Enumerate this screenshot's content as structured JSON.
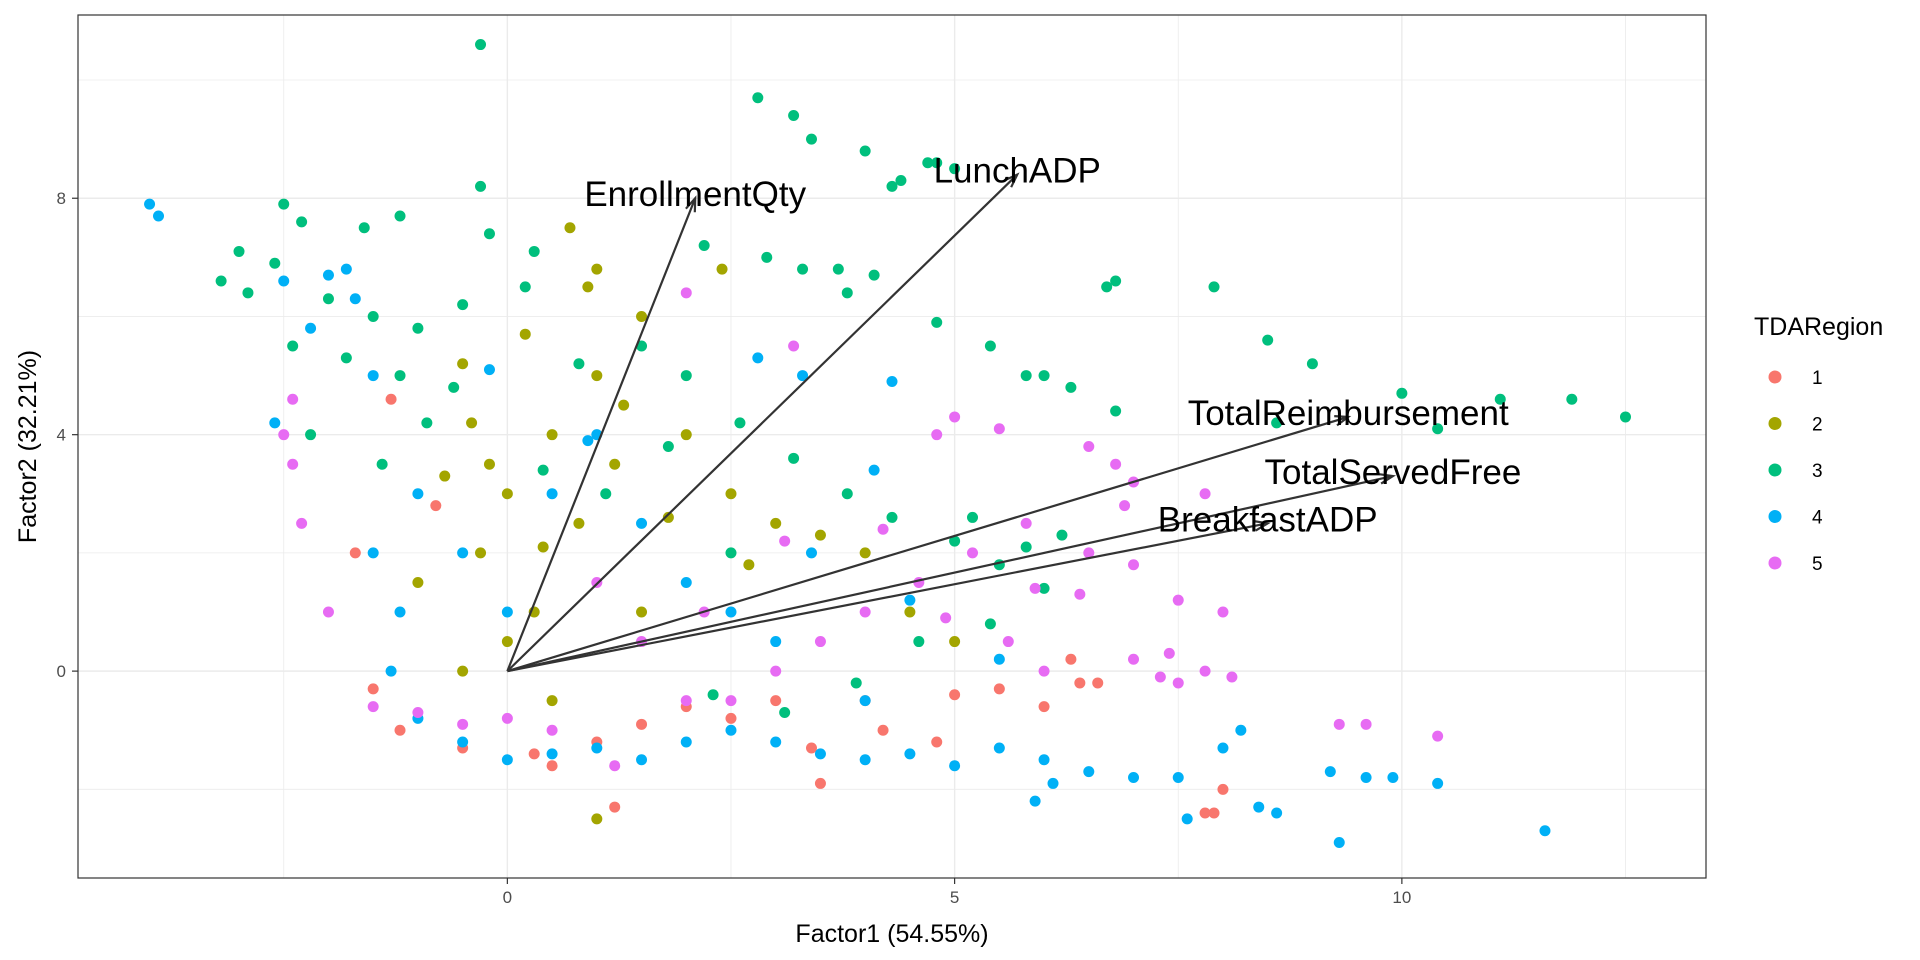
{
  "chart_data": {
    "type": "scatter",
    "title": "",
    "xlabel": "Factor1 (54.55%)",
    "ylabel": "Factor2 (32.21%)",
    "xlim": [
      -4.8,
      13.4
    ],
    "ylim": [
      -3.5,
      11.1
    ],
    "x_ticks": [
      0,
      5,
      10
    ],
    "y_ticks": [
      0,
      4,
      8
    ],
    "grid": true,
    "legend": {
      "title": "TDARegion",
      "placement": "right",
      "entries": [
        {
          "label": "1",
          "color": "#F8766D"
        },
        {
          "label": "2",
          "color": "#A3A500"
        },
        {
          "label": "3",
          "color": "#00BF7D"
        },
        {
          "label": "4",
          "color": "#00B0F6"
        },
        {
          "label": "5",
          "color": "#E76BF3"
        }
      ]
    },
    "series": [
      {
        "name": "1",
        "color": "#F8766D",
        "points": [
          [
            -1.5,
            -0.3
          ],
          [
            -1.2,
            -1.0
          ],
          [
            -0.5,
            -1.3
          ],
          [
            0.3,
            -1.4
          ],
          [
            1.0,
            -1.2
          ],
          [
            1.5,
            -0.9
          ],
          [
            2.0,
            -0.6
          ],
          [
            2.5,
            -0.8
          ],
          [
            3.0,
            -0.5
          ],
          [
            3.4,
            -1.3
          ],
          [
            3.5,
            -1.9
          ],
          [
            4.0,
            -0.5
          ],
          [
            4.2,
            -1.0
          ],
          [
            4.8,
            -1.2
          ],
          [
            5.0,
            -0.4
          ],
          [
            5.5,
            -0.3
          ],
          [
            6.0,
            -0.6
          ],
          [
            6.3,
            0.2
          ],
          [
            6.4,
            -0.2
          ],
          [
            6.6,
            -0.2
          ],
          [
            7.8,
            -2.4
          ],
          [
            7.9,
            -2.4
          ],
          [
            8.0,
            -2.0
          ],
          [
            1.2,
            -2.3
          ],
          [
            0.5,
            -1.6
          ],
          [
            -0.8,
            2.8
          ],
          [
            -1.7,
            2.0
          ],
          [
            -1.3,
            4.6
          ]
        ]
      },
      {
        "name": "2",
        "color": "#A3A500",
        "points": [
          [
            0.0,
            3.0
          ],
          [
            -0.3,
            2.0
          ],
          [
            0.5,
            4.0
          ],
          [
            1.0,
            5.0
          ],
          [
            1.5,
            6.0
          ],
          [
            2.4,
            6.8
          ],
          [
            0.7,
            7.5
          ],
          [
            1.0,
            6.8
          ],
          [
            -0.4,
            4.2
          ],
          [
            -1.0,
            1.5
          ],
          [
            0.3,
            1.0
          ],
          [
            0.8,
            2.5
          ],
          [
            1.2,
            3.5
          ],
          [
            -0.5,
            5.2
          ],
          [
            0.2,
            5.7
          ],
          [
            1.3,
            4.5
          ],
          [
            2.0,
            4.0
          ],
          [
            2.5,
            3.0
          ],
          [
            3.0,
            2.5
          ],
          [
            3.5,
            2.3
          ],
          [
            4.0,
            2.0
          ],
          [
            4.5,
            1.0
          ],
          [
            5.0,
            0.5
          ],
          [
            1.5,
            1.0
          ],
          [
            0.0,
            0.5
          ],
          [
            -0.5,
            0.0
          ],
          [
            0.5,
            -0.5
          ],
          [
            1.0,
            -2.5
          ],
          [
            -0.2,
            3.5
          ],
          [
            0.9,
            6.5
          ],
          [
            1.8,
            2.6
          ],
          [
            2.7,
            1.8
          ],
          [
            0.4,
            2.1
          ],
          [
            -0.7,
            3.3
          ]
        ]
      },
      {
        "name": "3",
        "color": "#00BF7D",
        "points": [
          [
            -0.3,
            10.6
          ],
          [
            -0.3,
            8.2
          ],
          [
            2.8,
            9.7
          ],
          [
            3.2,
            9.4
          ],
          [
            3.4,
            9.0
          ],
          [
            4.0,
            8.8
          ],
          [
            4.3,
            8.2
          ],
          [
            4.4,
            8.3
          ],
          [
            4.7,
            8.6
          ],
          [
            4.8,
            8.6
          ],
          [
            5.0,
            8.5
          ],
          [
            -2.5,
            7.9
          ],
          [
            -2.3,
            7.6
          ],
          [
            -1.6,
            7.5
          ],
          [
            -1.2,
            7.7
          ],
          [
            -0.2,
            7.4
          ],
          [
            0.3,
            7.1
          ],
          [
            2.2,
            7.2
          ],
          [
            2.9,
            7.0
          ],
          [
            3.3,
            6.8
          ],
          [
            3.7,
            6.8
          ],
          [
            4.1,
            6.7
          ],
          [
            6.7,
            6.5
          ],
          [
            6.8,
            6.6
          ],
          [
            7.9,
            6.5
          ],
          [
            3.8,
            6.4
          ],
          [
            4.8,
            5.9
          ],
          [
            8.5,
            5.6
          ],
          [
            9.0,
            5.2
          ],
          [
            5.4,
            5.5
          ],
          [
            5.8,
            5.0
          ],
          [
            6.0,
            5.0
          ],
          [
            6.3,
            4.8
          ],
          [
            10.0,
            4.7
          ],
          [
            11.1,
            4.6
          ],
          [
            11.9,
            4.6
          ],
          [
            12.5,
            4.3
          ],
          [
            10.4,
            4.1
          ],
          [
            8.6,
            4.2
          ],
          [
            6.8,
            4.4
          ],
          [
            -3.0,
            7.1
          ],
          [
            -3.2,
            6.6
          ],
          [
            -2.9,
            6.4
          ],
          [
            -2.6,
            6.9
          ],
          [
            -2.0,
            6.3
          ],
          [
            -1.5,
            6.0
          ],
          [
            -1.0,
            5.8
          ],
          [
            -0.5,
            6.2
          ],
          [
            0.2,
            6.5
          ],
          [
            -2.4,
            5.5
          ],
          [
            -1.8,
            5.3
          ],
          [
            -1.2,
            5.0
          ],
          [
            -0.6,
            4.8
          ],
          [
            0.8,
            5.2
          ],
          [
            1.5,
            5.5
          ],
          [
            2.0,
            5.0
          ],
          [
            2.6,
            4.2
          ],
          [
            3.2,
            3.6
          ],
          [
            3.8,
            3.0
          ],
          [
            4.3,
            2.6
          ],
          [
            5.0,
            2.2
          ],
          [
            5.5,
            1.8
          ],
          [
            6.2,
            2.3
          ],
          [
            6.0,
            1.4
          ],
          [
            5.4,
            0.8
          ],
          [
            4.6,
            0.5
          ],
          [
            3.9,
            -0.2
          ],
          [
            3.1,
            -0.7
          ],
          [
            2.3,
            -0.4
          ],
          [
            -2.2,
            4.0
          ],
          [
            -1.4,
            3.5
          ],
          [
            -0.9,
            4.2
          ],
          [
            0.4,
            3.4
          ],
          [
            1.1,
            3.0
          ],
          [
            1.8,
            3.8
          ],
          [
            2.5,
            2.0
          ],
          [
            5.2,
            2.6
          ],
          [
            5.8,
            2.1
          ]
        ]
      },
      {
        "name": "4",
        "color": "#00B0F6",
        "points": [
          [
            -4.0,
            7.9
          ],
          [
            -3.9,
            7.7
          ],
          [
            -2.5,
            6.6
          ],
          [
            -2.0,
            6.7
          ],
          [
            -1.8,
            6.8
          ],
          [
            -2.2,
            5.8
          ],
          [
            -1.5,
            5.0
          ],
          [
            -2.6,
            4.2
          ],
          [
            -1.0,
            3.0
          ],
          [
            -1.5,
            2.0
          ],
          [
            -1.2,
            1.0
          ],
          [
            -1.3,
            0.0
          ],
          [
            -1.0,
            -0.8
          ],
          [
            -0.5,
            -1.2
          ],
          [
            0.0,
            -1.5
          ],
          [
            0.5,
            -1.4
          ],
          [
            1.0,
            -1.3
          ],
          [
            1.5,
            -1.5
          ],
          [
            2.0,
            -1.2
          ],
          [
            2.5,
            -1.0
          ],
          [
            3.0,
            -1.2
          ],
          [
            3.5,
            -1.4
          ],
          [
            4.0,
            -1.5
          ],
          [
            4.5,
            -1.4
          ],
          [
            5.0,
            -1.6
          ],
          [
            5.5,
            -1.3
          ],
          [
            6.0,
            -1.5
          ],
          [
            6.1,
            -1.9
          ],
          [
            5.9,
            -2.2
          ],
          [
            6.5,
            -1.7
          ],
          [
            7.0,
            -1.8
          ],
          [
            7.5,
            -1.8
          ],
          [
            7.6,
            -2.5
          ],
          [
            8.0,
            -1.3
          ],
          [
            8.2,
            -1.0
          ],
          [
            8.4,
            -2.3
          ],
          [
            8.6,
            -2.4
          ],
          [
            9.2,
            -1.7
          ],
          [
            9.3,
            -2.9
          ],
          [
            9.6,
            -1.8
          ],
          [
            9.9,
            -1.8
          ],
          [
            10.4,
            -1.9
          ],
          [
            11.6,
            -2.7
          ],
          [
            -0.5,
            2.0
          ],
          [
            0.0,
            1.0
          ],
          [
            0.5,
            3.0
          ],
          [
            1.0,
            4.0
          ],
          [
            1.5,
            2.5
          ],
          [
            2.0,
            1.5
          ],
          [
            2.5,
            1.0
          ],
          [
            3.0,
            0.5
          ],
          [
            4.0,
            -0.5
          ],
          [
            3.4,
            2.0
          ],
          [
            4.5,
            1.2
          ],
          [
            5.5,
            0.2
          ],
          [
            2.8,
            5.3
          ],
          [
            3.3,
            5.0
          ],
          [
            4.3,
            4.9
          ],
          [
            4.1,
            3.4
          ],
          [
            0.9,
            3.9
          ],
          [
            -0.2,
            5.1
          ],
          [
            -1.7,
            6.3
          ]
        ]
      },
      {
        "name": "5",
        "color": "#E76BF3",
        "points": [
          [
            2.0,
            6.4
          ],
          [
            3.2,
            5.5
          ],
          [
            5.0,
            4.3
          ],
          [
            5.5,
            4.1
          ],
          [
            4.8,
            4.0
          ],
          [
            6.5,
            3.8
          ],
          [
            6.8,
            3.5
          ],
          [
            7.0,
            3.2
          ],
          [
            7.8,
            3.0
          ],
          [
            6.9,
            2.8
          ],
          [
            5.8,
            2.5
          ],
          [
            6.5,
            2.0
          ],
          [
            7.0,
            1.8
          ],
          [
            7.5,
            1.2
          ],
          [
            8.0,
            1.0
          ],
          [
            7.0,
            0.2
          ],
          [
            7.4,
            0.3
          ],
          [
            7.5,
            -0.2
          ],
          [
            7.8,
            0.0
          ],
          [
            7.3,
            -0.1
          ],
          [
            8.1,
            -0.1
          ],
          [
            9.3,
            -0.9
          ],
          [
            9.6,
            -0.9
          ],
          [
            10.4,
            -1.1
          ],
          [
            6.0,
            0.0
          ],
          [
            5.6,
            0.5
          ],
          [
            4.6,
            1.5
          ],
          [
            4.0,
            1.0
          ],
          [
            3.5,
            0.5
          ],
          [
            3.0,
            0.0
          ],
          [
            2.5,
            -0.5
          ],
          [
            2.0,
            -0.5
          ],
          [
            1.5,
            0.5
          ],
          [
            1.0,
            1.5
          ],
          [
            0.5,
            -1.0
          ],
          [
            0.0,
            -0.8
          ],
          [
            -0.5,
            -0.9
          ],
          [
            -1.0,
            -0.7
          ],
          [
            -1.5,
            -0.6
          ],
          [
            -2.0,
            1.0
          ],
          [
            -2.3,
            2.5
          ],
          [
            -2.4,
            3.5
          ],
          [
            -2.5,
            4.0
          ],
          [
            -2.4,
            4.6
          ],
          [
            1.2,
            -1.6
          ],
          [
            2.2,
            1.0
          ],
          [
            3.1,
            2.2
          ],
          [
            4.2,
            2.4
          ],
          [
            5.2,
            2.0
          ],
          [
            5.9,
            1.4
          ],
          [
            6.4,
            1.3
          ],
          [
            4.9,
            0.9
          ]
        ]
      }
    ],
    "loadings": [
      {
        "name": "EnrollmentQty",
        "x": 2.1,
        "y": 8.0
      },
      {
        "name": "LunchADP",
        "x": 5.7,
        "y": 8.4
      },
      {
        "name": "TotalReimbursement",
        "x": 9.4,
        "y": 4.3
      },
      {
        "name": "TotalServedFree",
        "x": 9.9,
        "y": 3.3
      },
      {
        "name": "BreakfastADP",
        "x": 8.5,
        "y": 2.5
      }
    ]
  }
}
